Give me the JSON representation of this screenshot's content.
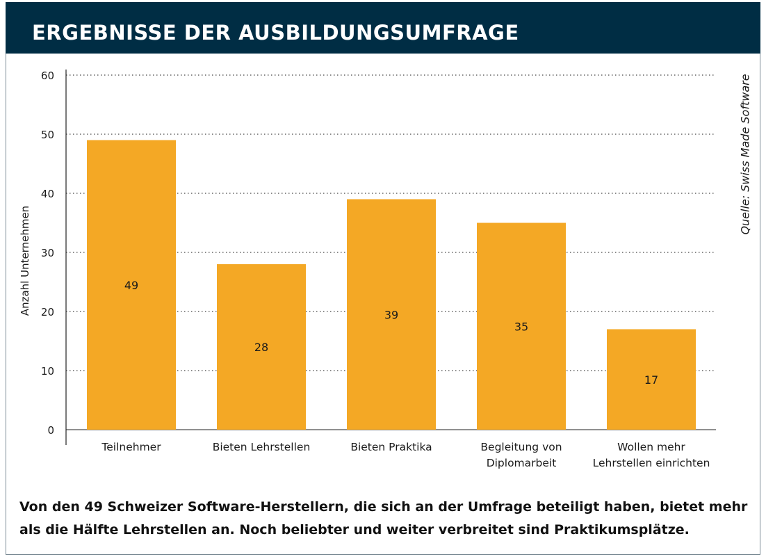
{
  "header": {
    "title": "ERGEBNISSE DER AUSBILDUNGSUMFRAGE"
  },
  "source": "Quelle: Swiss Made Software",
  "caption": {
    "line1": "Von den 49 Schweizer Software-Herstellern, die sich an der Umfrage beteiligt haben, bietet mehr",
    "line2": "als die Hälfte Lehrstellen an. Noch beliebter und weiter verbreitet sind Praktikumsplätze."
  },
  "colors": {
    "header_bg": "#002d44",
    "bar": "#f4a825",
    "text": "#1a1a1a",
    "grid": "#444444"
  },
  "chart_data": {
    "type": "bar",
    "categories": [
      [
        "Teilnehmer"
      ],
      [
        "Bieten Lehrstellen"
      ],
      [
        "Bieten Praktika"
      ],
      [
        "Begleitung von",
        "Diplomarbeit"
      ],
      [
        "Wollen mehr",
        "Lehrstellen einrichten"
      ]
    ],
    "values": [
      49,
      28,
      39,
      35,
      17
    ],
    "data_labels": [
      "49",
      "28",
      "39",
      "35",
      "17"
    ],
    "ylabel": "Anzahl Unternehmen",
    "ylim": [
      0,
      60
    ],
    "yticks": [
      0,
      10,
      20,
      30,
      40,
      50,
      60
    ],
    "grid": "dotted horizontal"
  }
}
